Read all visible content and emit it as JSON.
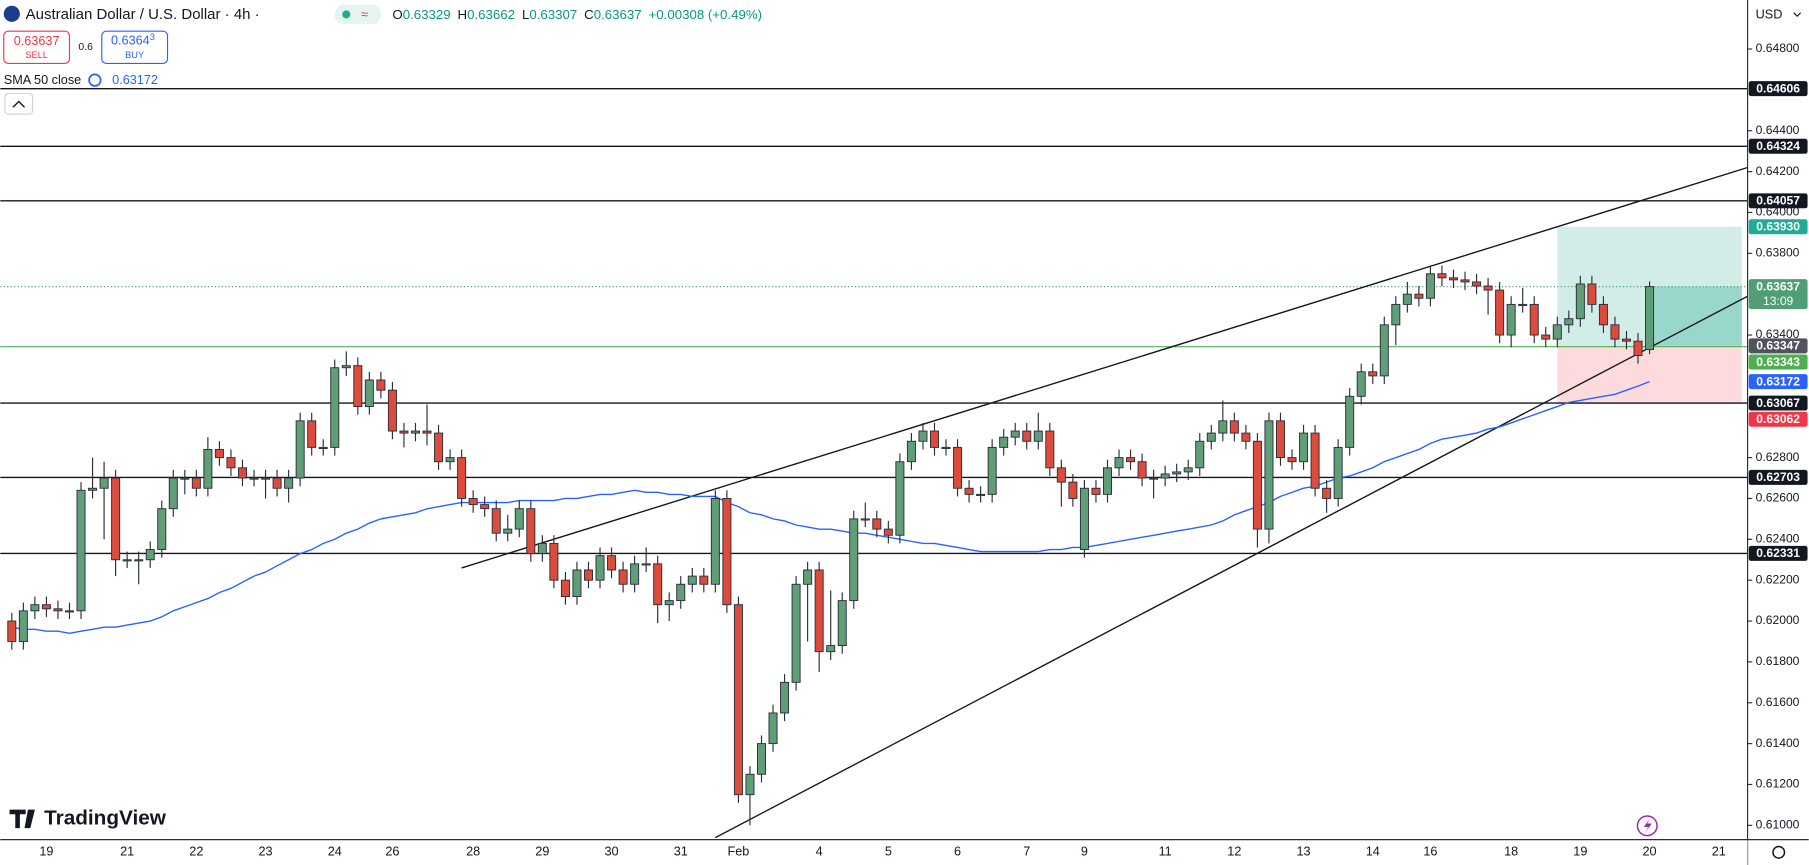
{
  "header": {
    "symbol": "Australian Dollar / U.S. Dollar · 4h ·",
    "ohlc": [
      {
        "label": "O",
        "value": "0.63329"
      },
      {
        "label": "H",
        "value": "0.63662"
      },
      {
        "label": "L",
        "value": "0.63307"
      },
      {
        "label": "C",
        "value": "0.63637"
      }
    ],
    "change": "+0.00308 (+0.49%)",
    "sell_price": "0.63637",
    "sell": "SELL",
    "spread": "0.6",
    "buy_price": "0.6364",
    "buy_price_sup": "3",
    "buy": "BUY",
    "indicator": "SMA 50 close",
    "indicator_value": "0.63172",
    "currency": "USD",
    "watermark": "TradingView"
  },
  "chart_data": {
    "type": "candlestick",
    "up_color": "#5f9e77",
    "down_color": "#dd4b3d",
    "wick_color": "#2a2e39",
    "categories": [
      null,
      null,
      null,
      "19",
      null,
      null,
      null,
      null,
      null,
      null,
      "21",
      null,
      null,
      null,
      null,
      null,
      "22",
      null,
      null,
      null,
      null,
      null,
      "23",
      null,
      null,
      null,
      null,
      null,
      "24",
      null,
      null,
      null,
      null,
      "26",
      null,
      null,
      null,
      null,
      null,
      null,
      "28",
      null,
      null,
      null,
      null,
      null,
      "29",
      null,
      null,
      null,
      null,
      null,
      "30",
      null,
      null,
      null,
      null,
      null,
      "31",
      null,
      null,
      null,
      null,
      "Feb",
      null,
      null,
      null,
      null,
      null,
      null,
      "4",
      null,
      null,
      null,
      null,
      null,
      "5",
      null,
      null,
      null,
      null,
      null,
      "6",
      null,
      null,
      null,
      null,
      null,
      "7",
      null,
      null,
      null,
      null,
      "9",
      null,
      null,
      null,
      null,
      null,
      null,
      "11",
      null,
      null,
      null,
      null,
      null,
      "12",
      null,
      null,
      null,
      null,
      null,
      "13",
      null,
      null,
      null,
      null,
      null,
      "14",
      null,
      null,
      null,
      null,
      "16",
      null,
      null,
      null,
      null,
      null,
      null,
      "18",
      null,
      null,
      null,
      null,
      null,
      "19",
      null,
      null,
      null,
      null,
      null,
      "20",
      null,
      null,
      null,
      null,
      null,
      "21",
      null,
      null
    ],
    "candles": [
      [
        0.62,
        0.6204,
        0.6186,
        0.619
      ],
      [
        0.619,
        0.6209,
        0.6186,
        0.6205
      ],
      [
        0.6205,
        0.6212,
        0.6201,
        0.6208
      ],
      [
        0.6208,
        0.6212,
        0.6202,
        0.6206
      ],
      [
        0.6206,
        0.621,
        0.6201,
        0.6205
      ],
      [
        0.6205,
        0.6209,
        0.6201,
        0.6205
      ],
      [
        0.6205,
        0.6268,
        0.6201,
        0.6264
      ],
      [
        0.6264,
        0.628,
        0.626,
        0.6265
      ],
      [
        0.6265,
        0.6278,
        0.624,
        0.627
      ],
      [
        0.627,
        0.6274,
        0.6222,
        0.623
      ],
      [
        0.623,
        0.6234,
        0.6226,
        0.623
      ],
      [
        0.623,
        0.6234,
        0.6218,
        0.623
      ],
      [
        0.623,
        0.6239,
        0.6226,
        0.6235
      ],
      [
        0.6235,
        0.6259,
        0.6231,
        0.6255
      ],
      [
        0.6255,
        0.6274,
        0.6251,
        0.627
      ],
      [
        0.627,
        0.6274,
        0.6262,
        0.627
      ],
      [
        0.627,
        0.6274,
        0.6261,
        0.6265
      ],
      [
        0.6265,
        0.629,
        0.6261,
        0.6284
      ],
      [
        0.6284,
        0.6288,
        0.6276,
        0.628
      ],
      [
        0.628,
        0.6284,
        0.6271,
        0.6275
      ],
      [
        0.6275,
        0.6279,
        0.6266,
        0.627
      ],
      [
        0.627,
        0.6274,
        0.6266,
        0.627
      ],
      [
        0.627,
        0.6274,
        0.626,
        0.627
      ],
      [
        0.627,
        0.6274,
        0.6261,
        0.6265
      ],
      [
        0.6265,
        0.6274,
        0.6258,
        0.627
      ],
      [
        0.627,
        0.6302,
        0.6266,
        0.6298
      ],
      [
        0.6298,
        0.6302,
        0.6281,
        0.6285
      ],
      [
        0.6285,
        0.6289,
        0.6281,
        0.6285
      ],
      [
        0.6285,
        0.6328,
        0.6281,
        0.6324
      ],
      [
        0.6324,
        0.6332,
        0.632,
        0.6325
      ],
      [
        0.6325,
        0.6329,
        0.6301,
        0.6305
      ],
      [
        0.6305,
        0.6322,
        0.6301,
        0.6318
      ],
      [
        0.6318,
        0.6322,
        0.6309,
        0.6313
      ],
      [
        0.6313,
        0.6317,
        0.6289,
        0.6293
      ],
      [
        0.6293,
        0.6297,
        0.6285,
        0.6292
      ],
      [
        0.6292,
        0.6297,
        0.6288,
        0.6293
      ],
      [
        0.6293,
        0.6306,
        0.6286,
        0.6292
      ],
      [
        0.6292,
        0.6296,
        0.6274,
        0.6278
      ],
      [
        0.6278,
        0.6284,
        0.6274,
        0.628
      ],
      [
        0.628,
        0.6284,
        0.6256,
        0.626
      ],
      [
        0.626,
        0.6264,
        0.6253,
        0.6257
      ],
      [
        0.6257,
        0.6261,
        0.6251,
        0.6255
      ],
      [
        0.6255,
        0.6259,
        0.6239,
        0.6243
      ],
      [
        0.6243,
        0.6252,
        0.6239,
        0.6245
      ],
      [
        0.6245,
        0.6259,
        0.6241,
        0.6255
      ],
      [
        0.6255,
        0.6259,
        0.6229,
        0.6233
      ],
      [
        0.6233,
        0.6242,
        0.6229,
        0.6238
      ],
      [
        0.6238,
        0.6242,
        0.6216,
        0.622
      ],
      [
        0.622,
        0.6224,
        0.6208,
        0.6212
      ],
      [
        0.6212,
        0.6229,
        0.6208,
        0.6225
      ],
      [
        0.6225,
        0.6229,
        0.6216,
        0.622
      ],
      [
        0.622,
        0.6236,
        0.6216,
        0.6232
      ],
      [
        0.6232,
        0.6236,
        0.6221,
        0.6225
      ],
      [
        0.6225,
        0.6229,
        0.6214,
        0.6218
      ],
      [
        0.6218,
        0.6232,
        0.6214,
        0.6228
      ],
      [
        0.6228,
        0.6236,
        0.6224,
        0.6228
      ],
      [
        0.6228,
        0.6232,
        0.6199,
        0.6208
      ],
      [
        0.6208,
        0.6214,
        0.62,
        0.621
      ],
      [
        0.621,
        0.6222,
        0.6206,
        0.6218
      ],
      [
        0.6218,
        0.6226,
        0.6214,
        0.6222
      ],
      [
        0.6222,
        0.6226,
        0.6214,
        0.6218
      ],
      [
        0.6218,
        0.6264,
        0.6214,
        0.626
      ],
      [
        0.626,
        0.6264,
        0.6204,
        0.6208
      ],
      [
        0.6208,
        0.6212,
        0.6111,
        0.6115
      ],
      [
        0.6115,
        0.6129,
        0.61,
        0.6125
      ],
      [
        0.6125,
        0.6144,
        0.6121,
        0.614
      ],
      [
        0.614,
        0.6159,
        0.6136,
        0.6155
      ],
      [
        0.6155,
        0.6174,
        0.6151,
        0.617
      ],
      [
        0.617,
        0.6222,
        0.6166,
        0.6218
      ],
      [
        0.6218,
        0.6229,
        0.619,
        0.6225
      ],
      [
        0.6225,
        0.6229,
        0.6175,
        0.6185
      ],
      [
        0.6185,
        0.6215,
        0.6181,
        0.6188
      ],
      [
        0.6188,
        0.6214,
        0.6184,
        0.621
      ],
      [
        0.621,
        0.6254,
        0.6206,
        0.625
      ],
      [
        0.625,
        0.6258,
        0.6246,
        0.625
      ],
      [
        0.625,
        0.6254,
        0.6241,
        0.6245
      ],
      [
        0.6245,
        0.6249,
        0.6238,
        0.6242
      ],
      [
        0.6242,
        0.6282,
        0.6238,
        0.6278
      ],
      [
        0.6278,
        0.6292,
        0.6274,
        0.6288
      ],
      [
        0.6288,
        0.6297,
        0.6284,
        0.6293
      ],
      [
        0.6293,
        0.6297,
        0.6281,
        0.6285
      ],
      [
        0.6285,
        0.6289,
        0.6281,
        0.6285
      ],
      [
        0.6285,
        0.6289,
        0.6261,
        0.6265
      ],
      [
        0.6265,
        0.6269,
        0.6258,
        0.6262
      ],
      [
        0.6262,
        0.6266,
        0.6258,
        0.6262
      ],
      [
        0.6262,
        0.6289,
        0.6258,
        0.6285
      ],
      [
        0.6285,
        0.6294,
        0.6281,
        0.629
      ],
      [
        0.629,
        0.6297,
        0.6286,
        0.6293
      ],
      [
        0.6293,
        0.6297,
        0.6284,
        0.6288
      ],
      [
        0.6288,
        0.6302,
        0.6284,
        0.6293
      ],
      [
        0.6293,
        0.6297,
        0.6271,
        0.6275
      ],
      [
        0.6275,
        0.6279,
        0.6256,
        0.6268
      ],
      [
        0.6268,
        0.6272,
        0.6256,
        0.626
      ],
      [
        0.6235,
        0.6269,
        0.6231,
        0.6265
      ],
      [
        0.6265,
        0.6269,
        0.6258,
        0.6262
      ],
      [
        0.6262,
        0.6279,
        0.6258,
        0.6275
      ],
      [
        0.6275,
        0.6284,
        0.6271,
        0.628
      ],
      [
        0.628,
        0.6284,
        0.6274,
        0.6278
      ],
      [
        0.6278,
        0.6282,
        0.6266,
        0.627
      ],
      [
        0.627,
        0.6274,
        0.626,
        0.627
      ],
      [
        0.627,
        0.6276,
        0.6266,
        0.6272
      ],
      [
        0.6272,
        0.6277,
        0.6268,
        0.6273
      ],
      [
        0.6273,
        0.6279,
        0.6269,
        0.6275
      ],
      [
        0.6275,
        0.6292,
        0.6271,
        0.6288
      ],
      [
        0.6288,
        0.6296,
        0.6284,
        0.6292
      ],
      [
        0.6292,
        0.6308,
        0.6288,
        0.6298
      ],
      [
        0.6298,
        0.6302,
        0.6288,
        0.6292
      ],
      [
        0.6292,
        0.6296,
        0.6284,
        0.6288
      ],
      [
        0.6288,
        0.6292,
        0.6236,
        0.6245
      ],
      [
        0.6245,
        0.6302,
        0.6238,
        0.6298
      ],
      [
        0.6298,
        0.6302,
        0.6276,
        0.628
      ],
      [
        0.628,
        0.6284,
        0.6274,
        0.6278
      ],
      [
        0.6278,
        0.6296,
        0.6274,
        0.6292
      ],
      [
        0.6292,
        0.6296,
        0.6261,
        0.6265
      ],
      [
        0.6265,
        0.6269,
        0.6253,
        0.626
      ],
      [
        0.626,
        0.6289,
        0.6256,
        0.6285
      ],
      [
        0.6285,
        0.6314,
        0.6281,
        0.631
      ],
      [
        0.631,
        0.6326,
        0.6306,
        0.6322
      ],
      [
        0.6322,
        0.6326,
        0.6316,
        0.632
      ],
      [
        0.632,
        0.6349,
        0.6316,
        0.6345
      ],
      [
        0.6345,
        0.6359,
        0.6335,
        0.6355
      ],
      [
        0.6355,
        0.6366,
        0.6351,
        0.636
      ],
      [
        0.636,
        0.6364,
        0.6354,
        0.6358
      ],
      [
        0.6358,
        0.6374,
        0.6354,
        0.637
      ],
      [
        0.637,
        0.6374,
        0.6364,
        0.6368
      ],
      [
        0.6368,
        0.6372,
        0.6363,
        0.6367
      ],
      [
        0.6367,
        0.6371,
        0.6362,
        0.6366
      ],
      [
        0.6366,
        0.637,
        0.636,
        0.6364
      ],
      [
        0.6364,
        0.6368,
        0.635,
        0.6362
      ],
      [
        0.6362,
        0.6366,
        0.6336,
        0.634
      ],
      [
        0.634,
        0.6359,
        0.6334,
        0.6355
      ],
      [
        0.6355,
        0.6363,
        0.6351,
        0.6355
      ],
      [
        0.6355,
        0.6359,
        0.6336,
        0.634
      ],
      [
        0.634,
        0.6344,
        0.6334,
        0.6338
      ],
      [
        0.6338,
        0.6349,
        0.6334,
        0.6345
      ],
      [
        0.6345,
        0.6352,
        0.6341,
        0.6348
      ],
      [
        0.6348,
        0.6369,
        0.6344,
        0.6365
      ],
      [
        0.6365,
        0.6369,
        0.6351,
        0.6355
      ],
      [
        0.6355,
        0.6359,
        0.6341,
        0.6345
      ],
      [
        0.6345,
        0.6349,
        0.6334,
        0.6338
      ],
      [
        0.6338,
        0.6342,
        0.6333,
        0.6337
      ],
      [
        0.6337,
        0.6341,
        0.6326,
        0.633
      ],
      [
        0.63329,
        0.63662,
        0.63307,
        0.63637
      ],
      null,
      null,
      null,
      null,
      null,
      null,
      null,
      null
    ],
    "sma": {
      "color": "#2962ff",
      "values": [
        0.6197,
        0.6196,
        0.6196,
        0.6195,
        0.6195,
        0.6194,
        0.6195,
        0.6196,
        0.6197,
        0.6197,
        0.6198,
        0.6199,
        0.62,
        0.6202,
        0.6205,
        0.6207,
        0.6209,
        0.6211,
        0.6214,
        0.6216,
        0.6219,
        0.6222,
        0.6224,
        0.6227,
        0.623,
        0.6233,
        0.6235,
        0.6238,
        0.624,
        0.6243,
        0.6245,
        0.6248,
        0.625,
        0.6251,
        0.6252,
        0.6253,
        0.6255,
        0.6256,
        0.6257,
        0.6258,
        0.6258,
        0.6258,
        0.6258,
        0.6258,
        0.6259,
        0.6259,
        0.6259,
        0.6259,
        0.626,
        0.626,
        0.6261,
        0.6262,
        0.6262,
        0.6263,
        0.6264,
        0.6263,
        0.6263,
        0.6262,
        0.6262,
        0.6261,
        0.6261,
        0.6261,
        0.6258,
        0.6256,
        0.6253,
        0.6252,
        0.625,
        0.6249,
        0.6247,
        0.6246,
        0.6245,
        0.6245,
        0.6244,
        0.6243,
        0.6243,
        0.6242,
        0.6241,
        0.624,
        0.6239,
        0.6238,
        0.6238,
        0.6237,
        0.6236,
        0.6235,
        0.6234,
        0.6234,
        0.6234,
        0.6234,
        0.6234,
        0.6234,
        0.6235,
        0.6235,
        0.6236,
        0.6236,
        0.6237,
        0.6238,
        0.6239,
        0.624,
        0.6241,
        0.6242,
        0.6243,
        0.6244,
        0.6245,
        0.6246,
        0.6247,
        0.6249,
        0.6252,
        0.6254,
        0.6256,
        0.6258,
        0.6261,
        0.6263,
        0.6265,
        0.6266,
        0.6268,
        0.627,
        0.6271,
        0.6273,
        0.6275,
        0.6278,
        0.628,
        0.6282,
        0.6284,
        0.6287,
        0.6289,
        0.629,
        0.6291,
        0.6292,
        0.6294,
        0.6295,
        0.6297,
        0.6299,
        0.6301,
        0.6303,
        0.6305,
        0.6307,
        0.6308,
        0.6309,
        0.631,
        0.6311,
        0.6313,
        0.6315,
        0.63172,
        null,
        null,
        null,
        null,
        null,
        null,
        null,
        null
      ]
    },
    "ylim": [
      0.6093,
      0.6504
    ],
    "yticks": [
      {
        "value": 0.648,
        "label": "0.64800"
      },
      {
        "value": 0.644,
        "label": "0.64400"
      },
      {
        "value": 0.642,
        "label": "0.64200"
      },
      {
        "value": 0.64,
        "label": "0.64000"
      },
      {
        "value": 0.638,
        "label": "0.63800"
      },
      {
        "value": 0.634,
        "label": "0.63400"
      },
      {
        "value": 0.628,
        "label": "0.62800"
      },
      {
        "value": 0.626,
        "label": "0.62600"
      },
      {
        "value": 0.624,
        "label": "0.62400"
      },
      {
        "value": 0.622,
        "label": "0.62200"
      },
      {
        "value": 0.62,
        "label": "0.62000"
      },
      {
        "value": 0.618,
        "label": "0.61800"
      },
      {
        "value": 0.616,
        "label": "0.61600"
      },
      {
        "value": 0.614,
        "label": "0.61400"
      },
      {
        "value": 0.612,
        "label": "0.61200"
      },
      {
        "value": 0.61,
        "label": "0.61000"
      }
    ],
    "grid": false,
    "levels": [
      {
        "value": 0.64606,
        "label": "0.64606"
      },
      {
        "value": 0.64324,
        "label": "0.64324"
      },
      {
        "value": 0.64057,
        "label": "0.64057"
      },
      {
        "value": 0.63067,
        "label": "0.63067"
      },
      {
        "value": 0.62703,
        "label": "0.62703"
      },
      {
        "value": 0.62331,
        "label": "0.62331"
      }
    ],
    "trendlines": [
      {
        "x": [
          39,
          150.5
        ],
        "y": [
          0.6226,
          0.6422
        ]
      },
      {
        "x": [
          61,
          150.5
        ],
        "y": [
          0.6094,
          0.6359
        ]
      }
    ],
    "position": {
      "x": [
        134,
        150
      ],
      "current_x": 142,
      "target": 0.6393,
      "entry": 0.63347,
      "current": 0.63637,
      "stop": 0.63062
    },
    "price_labels": [
      {
        "value": 0.6393,
        "label": "0.63930",
        "color": "#22ab94"
      },
      {
        "value": 0.63637,
        "label": "0.63637",
        "sub": "13:09",
        "color": "#4f9e76",
        "line": "dotted"
      },
      {
        "value": 0.63347,
        "label": "0.63347",
        "color": "#50535e"
      },
      {
        "value": 0.63343,
        "label": "0.63343",
        "color": "#4caf50",
        "line": "solid"
      },
      {
        "value": 0.63172,
        "label": "0.63172",
        "color": "#2962ff"
      },
      {
        "value": 0.63062,
        "label": "0.63062",
        "color": "#f23645"
      }
    ]
  }
}
